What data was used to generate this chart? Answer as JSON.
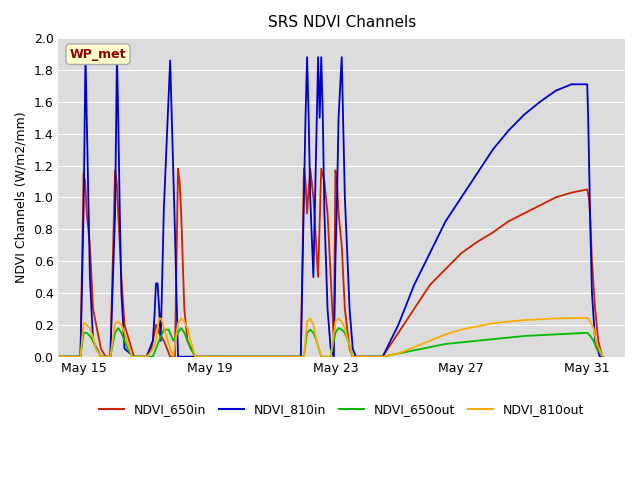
{
  "title": "SRS NDVI Channels",
  "ylabel": "NDVI Channels (W/m2/mm)",
  "annotation": "WP_met",
  "annotation_color": "#8B0000",
  "annotation_bg": "#FFFFCC",
  "annotation_edge": "#AAAAAA",
  "ylim": [
    0.0,
    2.0
  ],
  "xlim": [
    14.2,
    32.2
  ],
  "background_color": "#DCDCDC",
  "grid_color": "#FFFFFF",
  "series_order": [
    "NDVI_650in",
    "NDVI_810in",
    "NDVI_650out",
    "NDVI_810out"
  ],
  "series": {
    "NDVI_650in": {
      "color": "#CC2200",
      "linewidth": 1.3,
      "x": [
        14.25,
        14.9,
        15.0,
        15.05,
        15.1,
        15.2,
        15.3,
        15.55,
        15.7,
        15.85,
        16.0,
        16.05,
        16.1,
        16.15,
        16.2,
        16.3,
        16.6,
        17.0,
        17.15,
        17.2,
        17.25,
        17.3,
        17.4,
        17.55,
        17.65,
        17.75,
        17.9,
        18.0,
        18.05,
        18.1,
        18.15,
        18.2,
        18.3,
        18.55,
        18.7,
        18.8,
        19.0,
        19.1,
        19.15,
        19.2,
        19.3,
        19.4,
        19.5,
        19.6,
        19.7,
        20.0,
        20.5,
        21.0,
        21.5,
        21.9,
        22.0,
        22.05,
        22.1,
        22.15,
        22.2,
        22.3,
        22.45,
        22.55,
        22.65,
        22.75,
        22.85,
        22.95,
        23.0,
        23.05,
        23.1,
        23.2,
        23.3,
        23.45,
        23.55,
        23.65,
        23.75,
        23.9,
        24.0,
        24.5,
        25.0,
        25.5,
        26.0,
        26.5,
        27.0,
        27.5,
        28.0,
        28.5,
        29.0,
        29.5,
        30.0,
        30.5,
        31.0,
        31.05,
        31.1,
        31.15,
        31.25,
        31.35,
        31.45,
        31.5
      ],
      "y": [
        0.0,
        0.0,
        1.15,
        1.1,
        0.9,
        0.7,
        0.3,
        0.05,
        0.0,
        0.0,
        1.17,
        1.1,
        0.9,
        0.7,
        0.5,
        0.2,
        0.0,
        0.0,
        0.05,
        0.1,
        0.15,
        0.2,
        0.15,
        0.1,
        0.05,
        0.0,
        0.0,
        1.18,
        1.1,
        0.9,
        0.6,
        0.3,
        0.1,
        0.0,
        0.0,
        0.0,
        0.0,
        0.0,
        0.0,
        0.0,
        0.0,
        0.0,
        0.0,
        0.0,
        0.0,
        0.0,
        0.0,
        0.0,
        0.0,
        0.0,
        1.18,
        1.1,
        0.9,
        1.05,
        1.18,
        1.0,
        0.5,
        1.18,
        1.1,
        0.9,
        0.5,
        0.1,
        1.17,
        1.1,
        0.9,
        0.7,
        0.3,
        0.05,
        0.0,
        0.0,
        0.0,
        0.0,
        0.0,
        0.0,
        0.15,
        0.3,
        0.45,
        0.55,
        0.65,
        0.72,
        0.78,
        0.85,
        0.9,
        0.95,
        1.0,
        1.03,
        1.05,
        1.0,
        0.85,
        0.6,
        0.3,
        0.1,
        0.02,
        0.0
      ]
    },
    "NDVI_810in": {
      "color": "#0000CC",
      "linewidth": 1.3,
      "x": [
        14.25,
        14.9,
        15.0,
        15.03,
        15.06,
        15.1,
        15.15,
        15.2,
        15.3,
        15.55,
        15.7,
        15.85,
        16.0,
        16.03,
        16.06,
        16.1,
        16.15,
        16.2,
        16.3,
        16.6,
        17.0,
        17.2,
        17.25,
        17.3,
        17.35,
        17.4,
        17.45,
        17.55,
        17.65,
        17.75,
        17.9,
        18.0,
        18.03,
        18.06,
        18.1,
        18.15,
        18.2,
        18.3,
        18.55,
        18.7,
        18.8,
        19.0,
        19.1,
        19.15,
        19.2,
        19.3,
        19.5,
        19.6,
        20.0,
        20.5,
        21.0,
        21.5,
        21.9,
        22.0,
        22.05,
        22.1,
        22.15,
        22.2,
        22.3,
        22.45,
        22.5,
        22.55,
        22.6,
        22.65,
        22.75,
        22.85,
        22.95,
        23.0,
        23.05,
        23.1,
        23.2,
        23.3,
        23.45,
        23.55,
        23.65,
        23.75,
        23.9,
        24.0,
        24.5,
        25.0,
        25.5,
        26.0,
        26.5,
        27.0,
        27.5,
        28.0,
        28.5,
        29.0,
        29.5,
        30.0,
        30.5,
        31.0,
        31.03,
        31.06,
        31.1,
        31.15,
        31.25,
        31.4,
        31.5
      ],
      "y": [
        0.0,
        0.0,
        0.92,
        1.4,
        1.9,
        1.5,
        1.0,
        0.5,
        0.1,
        0.0,
        0.0,
        0.0,
        0.9,
        1.4,
        1.9,
        1.5,
        0.9,
        0.4,
        0.05,
        0.0,
        0.0,
        0.1,
        0.25,
        0.46,
        0.46,
        0.3,
        0.1,
        0.93,
        1.4,
        1.86,
        0.8,
        0.0,
        0.0,
        0.0,
        0.0,
        0.0,
        0.0,
        0.0,
        0.0,
        0.0,
        0.0,
        0.0,
        0.0,
        0.0,
        0.0,
        0.0,
        0.0,
        0.0,
        0.0,
        0.0,
        0.0,
        0.0,
        0.0,
        1.0,
        1.5,
        1.88,
        1.5,
        1.0,
        0.5,
        1.88,
        1.5,
        1.88,
        1.5,
        0.9,
        0.3,
        0.05,
        0.0,
        0.6,
        1.0,
        1.5,
        1.88,
        1.0,
        0.3,
        0.05,
        0.0,
        0.0,
        0.0,
        0.0,
        0.0,
        0.2,
        0.45,
        0.65,
        0.85,
        1.0,
        1.15,
        1.3,
        1.42,
        1.52,
        1.6,
        1.67,
        1.71,
        1.71,
        1.5,
        1.2,
        0.8,
        0.4,
        0.1,
        0.0,
        0.0
      ]
    },
    "NDVI_650out": {
      "color": "#00BB00",
      "linewidth": 1.3,
      "x": [
        14.25,
        14.9,
        15.0,
        15.05,
        15.1,
        15.2,
        15.3,
        15.4,
        15.55,
        15.7,
        15.85,
        16.0,
        16.1,
        16.2,
        16.3,
        16.4,
        16.55,
        16.7,
        16.85,
        17.0,
        17.2,
        17.3,
        17.4,
        17.55,
        17.7,
        17.85,
        18.0,
        18.1,
        18.2,
        18.3,
        18.4,
        18.55,
        18.7,
        18.85,
        19.0,
        19.2,
        19.5,
        22.0,
        22.1,
        22.2,
        22.3,
        22.4,
        22.55,
        22.7,
        22.85,
        23.0,
        23.1,
        23.2,
        23.3,
        23.4,
        23.55,
        23.7,
        23.85,
        24.0,
        24.5,
        25.0,
        25.5,
        26.0,
        26.5,
        27.0,
        27.5,
        28.0,
        28.5,
        29.0,
        29.5,
        30.0,
        30.5,
        31.0,
        31.1,
        31.2,
        31.3,
        31.5
      ],
      "y": [
        0.0,
        0.0,
        0.15,
        0.15,
        0.15,
        0.13,
        0.1,
        0.05,
        0.0,
        0.0,
        0.0,
        0.15,
        0.18,
        0.15,
        0.1,
        0.05,
        0.0,
        0.0,
        0.0,
        0.0,
        0.0,
        0.05,
        0.1,
        0.17,
        0.17,
        0.1,
        0.15,
        0.18,
        0.15,
        0.1,
        0.05,
        0.0,
        0.0,
        0.0,
        0.0,
        0.0,
        0.0,
        0.0,
        0.15,
        0.17,
        0.15,
        0.1,
        0.0,
        0.0,
        0.0,
        0.15,
        0.18,
        0.17,
        0.15,
        0.1,
        0.0,
        0.0,
        0.0,
        0.0,
        0.0,
        0.02,
        0.04,
        0.06,
        0.08,
        0.09,
        0.1,
        0.11,
        0.12,
        0.13,
        0.135,
        0.14,
        0.145,
        0.15,
        0.13,
        0.1,
        0.05,
        0.0
      ]
    },
    "NDVI_810out": {
      "color": "#FFAA00",
      "linewidth": 1.3,
      "x": [
        14.25,
        14.9,
        15.0,
        15.05,
        15.1,
        15.2,
        15.3,
        15.4,
        15.55,
        15.7,
        15.85,
        16.0,
        16.1,
        16.2,
        16.3,
        16.4,
        16.55,
        16.7,
        16.85,
        17.0,
        17.1,
        17.2,
        17.3,
        17.35,
        17.4,
        17.45,
        17.5,
        17.55,
        17.65,
        17.75,
        17.85,
        18.0,
        18.1,
        18.2,
        18.3,
        18.4,
        18.55,
        18.7,
        18.85,
        19.0,
        19.2,
        19.5,
        22.0,
        22.1,
        22.2,
        22.3,
        22.4,
        22.55,
        22.7,
        22.85,
        23.0,
        23.1,
        23.2,
        23.3,
        23.4,
        23.55,
        23.7,
        23.85,
        24.0,
        24.5,
        25.0,
        25.5,
        26.0,
        26.5,
        27.0,
        27.5,
        28.0,
        28.5,
        29.0,
        29.5,
        30.0,
        30.5,
        31.0,
        31.1,
        31.2,
        31.3,
        31.5
      ],
      "y": [
        0.0,
        0.0,
        0.21,
        0.21,
        0.2,
        0.18,
        0.12,
        0.05,
        0.0,
        0.0,
        0.0,
        0.21,
        0.22,
        0.2,
        0.15,
        0.08,
        0.0,
        0.0,
        0.0,
        0.0,
        0.02,
        0.05,
        0.1,
        0.18,
        0.24,
        0.24,
        0.22,
        0.18,
        0.12,
        0.05,
        0.0,
        0.21,
        0.24,
        0.22,
        0.18,
        0.1,
        0.0,
        0.0,
        0.0,
        0.0,
        0.0,
        0.0,
        0.0,
        0.22,
        0.24,
        0.2,
        0.1,
        0.0,
        0.0,
        0.0,
        0.22,
        0.24,
        0.22,
        0.18,
        0.1,
        0.0,
        0.0,
        0.0,
        0.0,
        0.0,
        0.02,
        0.06,
        0.1,
        0.14,
        0.17,
        0.19,
        0.21,
        0.22,
        0.23,
        0.235,
        0.24,
        0.242,
        0.244,
        0.22,
        0.18,
        0.08,
        0.0
      ]
    }
  },
  "xticks": {
    "labels": [
      "May 15",
      "May 19",
      "May 23",
      "May 27",
      "May 31"
    ],
    "positions": [
      15,
      19,
      23,
      27,
      31
    ]
  },
  "yticks": [
    0.0,
    0.2,
    0.4,
    0.6,
    0.8,
    1.0,
    1.2,
    1.4,
    1.6,
    1.8,
    2.0
  ],
  "legend_labels": [
    "NDVI_650in",
    "NDVI_810in",
    "NDVI_650out",
    "NDVI_810out"
  ]
}
